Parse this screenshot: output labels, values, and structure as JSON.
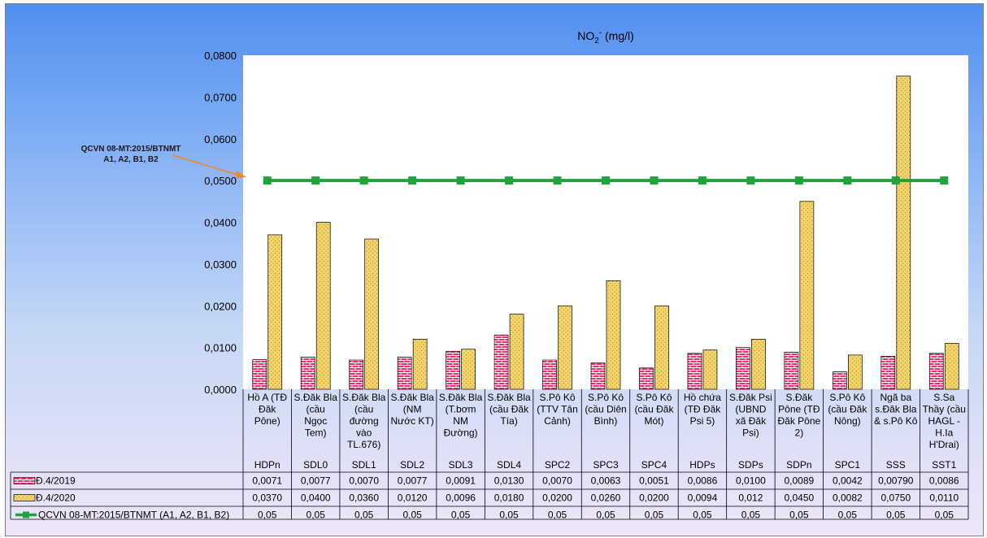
{
  "chart_data": {
    "type": "bar",
    "title": "NO₂⁻ (mg/l)",
    "title_main": "NO",
    "title_sub": "2",
    "title_sup": "-",
    "title_unit": " (mg/l)",
    "ylim": [
      0,
      0.08
    ],
    "yticks": [
      "0,0000",
      "0,0100",
      "0,0200",
      "0,0300",
      "0,0400",
      "0,0500",
      "0,0600",
      "0,0700",
      "0,0800"
    ],
    "categories": [
      {
        "name": [
          "Hồ A (TĐ",
          "Đăk",
          "Pône)"
        ],
        "code": "HDPn"
      },
      {
        "name": [
          "S.Đăk Bla",
          "(cầu",
          "Ngọc",
          "Tem)"
        ],
        "code": "SDL0"
      },
      {
        "name": [
          "S.Đăk Bla",
          "(cầu",
          "đường",
          "vào",
          "TL.676)"
        ],
        "code": "SDL1"
      },
      {
        "name": [
          "S.Đăk Bla",
          "(NM",
          "Nước KT)"
        ],
        "code": "SDL2"
      },
      {
        "name": [
          "S.Đăk Bla",
          "(T.bơm",
          "NM",
          "Đường)"
        ],
        "code": "SDL3"
      },
      {
        "name": [
          "S.Đăk Bla",
          "(cầu Đăk",
          "Tía)"
        ],
        "code": "SDL4"
      },
      {
        "name": [
          "S.Pô Kô",
          "(TTV Tân",
          "Cảnh)"
        ],
        "code": "SPC2"
      },
      {
        "name": [
          "S.Pô Kô",
          "(cầu Diên",
          "Bình)"
        ],
        "code": "SPC3"
      },
      {
        "name": [
          "S.Pô Kô",
          "(cầu Đăk",
          "Mót)"
        ],
        "code": "SPC4"
      },
      {
        "name": [
          "Hồ chứa",
          "(TĐ Đăk",
          "Psi 5)"
        ],
        "code": "HDPs"
      },
      {
        "name": [
          "S.Đăk Psi",
          "(UBND",
          "xã Đăk",
          "Psi)"
        ],
        "code": "SDPs"
      },
      {
        "name": [
          "S.Đăk",
          "Pône (TĐ",
          "Đăk Pône",
          "2)"
        ],
        "code": "SDPn"
      },
      {
        "name": [
          "S.Pô Kô",
          "(cầu Đăk",
          "Nông)"
        ],
        "code": "SPC1"
      },
      {
        "name": [
          "Ngã ba",
          "s.Đăk Bla",
          "& s.Pô Kô"
        ],
        "code": "SSS"
      },
      {
        "name": [
          "S.Sa",
          "Thầy (cầu",
          "HAGL -",
          "H.Ia",
          "H'Drai)"
        ],
        "code": "SST1"
      }
    ],
    "series": [
      {
        "name": "Đ.4/2019",
        "color": "#e8336f",
        "pattern": "brick",
        "values": [
          0.0071,
          0.0077,
          0.007,
          0.0077,
          0.0091,
          0.013,
          0.007,
          0.0063,
          0.0051,
          0.0086,
          0.01,
          0.0089,
          0.0042,
          0.0079,
          0.0086
        ],
        "labels": [
          "0,0071",
          "0,0077",
          "0,0070",
          "0,0077",
          "0,0091",
          "0,0130",
          "0,0070",
          "0,0063",
          "0,0051",
          "0,0086",
          "0,0100",
          "0,0089",
          "0,0042",
          "0,00790",
          "0,0086"
        ]
      },
      {
        "name": "Đ.4/2020",
        "color": "#f3d36a",
        "pattern": "dots",
        "values": [
          0.037,
          0.04,
          0.036,
          0.012,
          0.0096,
          0.018,
          0.02,
          0.026,
          0.02,
          0.0094,
          0.012,
          0.045,
          0.0082,
          0.075,
          0.011
        ],
        "labels": [
          "0,0370",
          "0,0400",
          "0,0360",
          "0,0120",
          "0,0096",
          "0,0180",
          "0,0200",
          "0,0260",
          "0,0200",
          "0,0094",
          "0,012",
          "0,0450",
          "0,0082",
          "0,0750",
          "0,0110"
        ]
      },
      {
        "name": "QCVN 08-MT:2015/BTNMT (A1, A2, B1, B2)",
        "color": "#1fa33a",
        "type": "line",
        "values": [
          0.05,
          0.05,
          0.05,
          0.05,
          0.05,
          0.05,
          0.05,
          0.05,
          0.05,
          0.05,
          0.05,
          0.05,
          0.05,
          0.05,
          0.05
        ],
        "labels": [
          "0,05",
          "0,05",
          "0,05",
          "0,05",
          "0,05",
          "0,05",
          "0,05",
          "0,05",
          "0,05",
          "0,05",
          "0,05",
          "0,05",
          "0,05",
          "0,05",
          "0,05"
        ]
      }
    ],
    "annotation": [
      "QCVN 08-MT:2015/BTNMT",
      "A1, A2, B1, B2"
    ],
    "legend": "data-table"
  }
}
